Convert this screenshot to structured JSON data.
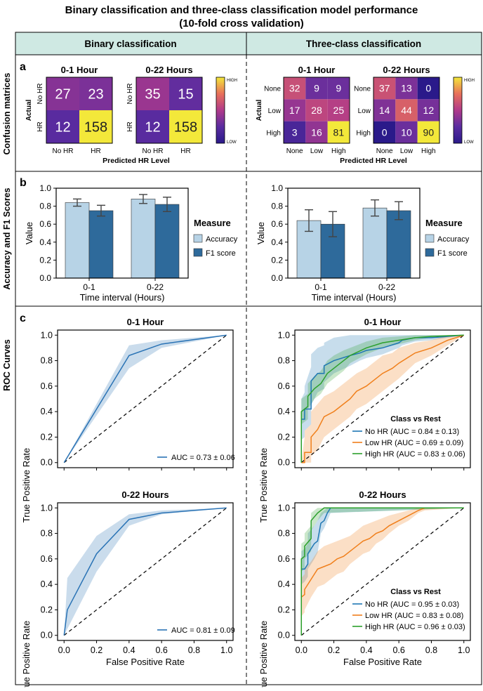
{
  "figure": {
    "title_line1": "Binary classification and three-class classification model performance",
    "title_line2": "(10-fold cross validation)",
    "col_binary": "Binary classification",
    "col_three": "Three-class classification",
    "row_cm": "Confusion matrices",
    "row_acc": "Accuracy and F1 Scores",
    "row_roc": "ROC Curves",
    "panel_a": "a",
    "panel_b": "b",
    "panel_c": "c",
    "colorbar_high": "HIGH",
    "colorbar_low": "LOW",
    "header_color": "#cfe9e3"
  },
  "chart_data": {
    "confusion_matrices": [
      {
        "id": "bin01",
        "title": "0-1 Hour",
        "rows": [
          "No HR",
          "HR"
        ],
        "cols": [
          "No HR",
          "HR"
        ],
        "values": [
          [
            27,
            23
          ],
          [
            12,
            158
          ]
        ],
        "ylabel": "Actual",
        "xlabel": "Predicted HR Level"
      },
      {
        "id": "bin022",
        "title": "0-22 Hours",
        "rows": [
          "No HR",
          "HR"
        ],
        "cols": [
          "No HR",
          "HR"
        ],
        "values": [
          [
            35,
            15
          ],
          [
            12,
            158
          ]
        ]
      },
      {
        "id": "tri01",
        "title": "0-1 Hour",
        "rows": [
          "None",
          "Low",
          "High"
        ],
        "cols": [
          "None",
          "Low",
          "High"
        ],
        "values": [
          [
            32,
            9,
            9
          ],
          [
            17,
            28,
            25
          ],
          [
            3,
            16,
            81
          ]
        ],
        "ylabel": "Actual",
        "xlabel": "Predicted HR Level"
      },
      {
        "id": "tri022",
        "title": "0-22 Hours",
        "rows": [
          "None",
          "Low",
          "High"
        ],
        "cols": [
          "None",
          "Low",
          "High"
        ],
        "values": [
          [
            37,
            13,
            0
          ],
          [
            14,
            44,
            12
          ],
          [
            0,
            10,
            90
          ]
        ]
      }
    ],
    "bars": [
      {
        "id": "bin",
        "type": "bar",
        "categories": [
          "0-1",
          "0-22"
        ],
        "xlabel": "Time interval (Hours)",
        "ylabel": "Value",
        "ylim": [
          0,
          1.0
        ],
        "yticks": [
          "0.0",
          "0.2",
          "0.4",
          "0.6",
          "0.8",
          "1.0"
        ],
        "legend_title": "Measure",
        "series": [
          {
            "name": "Accuracy",
            "color": "#b7d3e6",
            "values": [
              0.84,
              0.88
            ],
            "err": [
              0.04,
              0.05
            ]
          },
          {
            "name": "F1 score",
            "color": "#2e6a9b",
            "values": [
              0.75,
              0.82
            ],
            "err": [
              0.06,
              0.08
            ]
          }
        ]
      },
      {
        "id": "tri",
        "type": "bar",
        "categories": [
          "0-1",
          "0-22"
        ],
        "xlabel": "Time interval (Hours)",
        "ylabel": "Value",
        "ylim": [
          0,
          1.0
        ],
        "yticks": [
          "0.0",
          "0.2",
          "0.4",
          "0.6",
          "0.8",
          "1.0"
        ],
        "legend_title": "Measure",
        "series": [
          {
            "name": "Accuracy",
            "color": "#b7d3e6",
            "values": [
              0.64,
              0.78
            ],
            "err": [
              0.12,
              0.09
            ]
          },
          {
            "name": "F1 score",
            "color": "#2e6a9b",
            "values": [
              0.6,
              0.75
            ],
            "err": [
              0.14,
              0.1
            ]
          }
        ]
      }
    ],
    "roc": [
      {
        "id": "roc_bin01",
        "type": "line",
        "title": "0-1 Hour",
        "ylabel": "True Positive Rate",
        "xlabel": "",
        "ticks": [
          "0.0",
          "0.2",
          "0.4",
          "0.6",
          "0.8",
          "1.0"
        ],
        "series": [
          {
            "label": "AUC = 0.73 ± 0.06",
            "color": "#2a73b5",
            "x": [
              0,
              0.4,
              0.6,
              1.0
            ],
            "y": [
              0,
              0.84,
              0.93,
              1.0
            ],
            "lo": [
              0,
              0.74,
              0.9,
              1.0
            ],
            "hi": [
              0,
              0.92,
              0.96,
              1.0
            ]
          }
        ]
      },
      {
        "id": "roc_bin022",
        "type": "line",
        "title": "0-22 Hours",
        "ylabel": "True Positive Rate",
        "xlabel": "False Positive Rate",
        "ticks": [
          "0.0",
          "0.2",
          "0.4",
          "0.6",
          "0.8",
          "1.0"
        ],
        "series": [
          {
            "label": "AUC = 0.81 ± 0.09",
            "color": "#2a73b5",
            "x": [
              0,
              0.02,
              0.2,
              0.4,
              0.6,
              1.0
            ],
            "y": [
              0,
              0.2,
              0.64,
              0.91,
              0.96,
              1.0
            ],
            "lo": [
              0,
              0.05,
              0.5,
              0.86,
              0.95,
              1.0
            ],
            "hi": [
              0,
              0.45,
              0.78,
              0.95,
              0.98,
              1.0
            ]
          }
        ]
      },
      {
        "id": "roc_tri01",
        "type": "line",
        "title": "0-1 Hour",
        "ylabel": "True Positive Rate",
        "xlabel": "",
        "ticks": [
          "0.0",
          "0.2",
          "0.4",
          "0.6",
          "0.8",
          "1.0"
        ],
        "legend_title": "Class vs Rest",
        "series": [
          {
            "label": "No HR (AUC = 0.84 ± 0.13)",
            "color": "#1f77b4",
            "x": [
              0,
              0,
              0.02,
              0.02,
              0.06,
              0.06,
              0.1,
              0.14,
              0.14,
              0.2,
              0.3,
              0.36,
              0.4,
              0.5,
              0.6,
              0.62,
              0.7,
              0.8,
              1.0
            ],
            "y": [
              0,
              0.34,
              0.34,
              0.42,
              0.42,
              0.64,
              0.7,
              0.7,
              0.76,
              0.8,
              0.84,
              0.86,
              0.88,
              0.9,
              0.94,
              0.96,
              0.98,
              0.98,
              1.0
            ],
            "lo": [
              0,
              0.18,
              0.2,
              0.25,
              0.3,
              0.45,
              0.55,
              0.58,
              0.63,
              0.7,
              0.76,
              0.8,
              0.82,
              0.85,
              0.9,
              0.92,
              0.95,
              0.96,
              1.0
            ],
            "hi": [
              0,
              0.5,
              0.55,
              0.6,
              0.75,
              0.85,
              0.9,
              0.92,
              0.94,
              0.98,
              1.0,
              1.0,
              1.0,
              1.0,
              1.0,
              1.0,
              1.0,
              1.0,
              1.0
            ]
          },
          {
            "label": "Low HR (AUC = 0.69 ± 0.09)",
            "color": "#f07f1b",
            "x": [
              0,
              0.02,
              0.02,
              0.06,
              0.06,
              0.1,
              0.14,
              0.2,
              0.24,
              0.3,
              0.34,
              0.4,
              0.44,
              0.5,
              0.56,
              0.6,
              0.7,
              0.8,
              0.9,
              1.0
            ],
            "y": [
              0,
              0.0,
              0.08,
              0.08,
              0.2,
              0.26,
              0.36,
              0.4,
              0.44,
              0.5,
              0.56,
              0.6,
              0.64,
              0.7,
              0.74,
              0.78,
              0.86,
              0.9,
              0.96,
              1.0
            ],
            "lo": [
              0,
              0,
              0,
              0,
              0.05,
              0.1,
              0.2,
              0.26,
              0.3,
              0.36,
              0.42,
              0.46,
              0.5,
              0.56,
              0.62,
              0.66,
              0.78,
              0.84,
              0.92,
              1.0
            ],
            "hi": [
              0,
              0.2,
              0.25,
              0.3,
              0.4,
              0.46,
              0.52,
              0.56,
              0.6,
              0.66,
              0.7,
              0.74,
              0.78,
              0.84,
              0.86,
              0.9,
              0.94,
              0.96,
              1.0,
              1.0
            ]
          },
          {
            "label": "High HR (AUC = 0.83 ± 0.06)",
            "color": "#2ca02c",
            "x": [
              0,
              0,
              0.04,
              0.04,
              0.08,
              0.12,
              0.16,
              0.2,
              0.26,
              0.3,
              0.4,
              0.5,
              0.6,
              0.7,
              0.8,
              1.0
            ],
            "y": [
              0,
              0.4,
              0.44,
              0.52,
              0.58,
              0.62,
              0.7,
              0.74,
              0.8,
              0.84,
              0.9,
              0.94,
              0.96,
              0.98,
              0.99,
              1.0
            ],
            "lo": [
              0,
              0.3,
              0.34,
              0.42,
              0.5,
              0.54,
              0.62,
              0.66,
              0.72,
              0.78,
              0.85,
              0.9,
              0.93,
              0.96,
              0.98,
              1.0
            ],
            "hi": [
              0,
              0.5,
              0.54,
              0.62,
              0.68,
              0.72,
              0.8,
              0.84,
              0.88,
              0.9,
              0.95,
              0.98,
              0.99,
              1.0,
              1.0,
              1.0
            ]
          }
        ]
      },
      {
        "id": "roc_tri022",
        "type": "line",
        "title": "0-22 Hours",
        "ylabel": "True Positive Rate",
        "xlabel": "False Positive Rate",
        "ticks": [
          "0.0",
          "0.2",
          "0.4",
          "0.6",
          "0.8",
          "1.0"
        ],
        "legend_title": "Class vs Rest",
        "series": [
          {
            "label": "No HR (AUC = 0.95 ± 0.03)",
            "color": "#1f77b4",
            "x": [
              0,
              0,
              0.02,
              0.04,
              0.04,
              0.08,
              0.1,
              0.12,
              0.14,
              0.16,
              0.18,
              1.0
            ],
            "y": [
              0,
              0.52,
              0.52,
              0.56,
              0.64,
              0.72,
              0.74,
              0.88,
              0.9,
              0.96,
              1.0,
              1.0
            ],
            "lo": [
              0,
              0.4,
              0.42,
              0.46,
              0.52,
              0.6,
              0.65,
              0.8,
              0.84,
              0.9,
              0.96,
              1.0
            ],
            "hi": [
              0,
              0.66,
              0.68,
              0.72,
              0.8,
              0.86,
              0.9,
              0.96,
              0.98,
              1.0,
              1.0,
              1.0
            ]
          },
          {
            "label": "Low HR (AUC = 0.83 ± 0.08)",
            "color": "#f07f1b",
            "x": [
              0,
              0,
              0.02,
              0.02,
              0.06,
              0.08,
              0.1,
              0.14,
              0.18,
              0.22,
              0.26,
              0.3,
              0.34,
              0.38,
              0.42,
              0.46,
              0.5,
              0.54,
              0.6,
              0.66,
              0.72,
              0.76,
              1.0
            ],
            "y": [
              0,
              0.3,
              0.32,
              0.36,
              0.44,
              0.48,
              0.52,
              0.54,
              0.56,
              0.6,
              0.62,
              0.66,
              0.7,
              0.74,
              0.76,
              0.8,
              0.82,
              0.86,
              0.9,
              0.94,
              0.98,
              1.0,
              1.0
            ],
            "lo": [
              0,
              0.15,
              0.18,
              0.2,
              0.3,
              0.34,
              0.38,
              0.4,
              0.44,
              0.48,
              0.5,
              0.56,
              0.6,
              0.64,
              0.66,
              0.72,
              0.75,
              0.8,
              0.86,
              0.9,
              0.96,
              0.98,
              1.0
            ],
            "hi": [
              0,
              0.45,
              0.48,
              0.52,
              0.58,
              0.62,
              0.66,
              0.7,
              0.72,
              0.74,
              0.76,
              0.78,
              0.82,
              0.86,
              0.88,
              0.9,
              0.92,
              0.94,
              0.96,
              0.98,
              1.0,
              1.0,
              1.0
            ]
          },
          {
            "label": "High HR (AUC = 0.96 ± 0.03)",
            "color": "#2ca02c",
            "x": [
              0,
              0,
              0.02,
              0.02,
              0.06,
              0.06,
              0.1,
              0.14,
              1.0
            ],
            "y": [
              0,
              0.6,
              0.62,
              0.7,
              0.76,
              0.9,
              0.96,
              1.0,
              1.0
            ],
            "lo": [
              0,
              0.5,
              0.52,
              0.6,
              0.66,
              0.82,
              0.9,
              0.96,
              1.0
            ],
            "hi": [
              0,
              0.72,
              0.74,
              0.8,
              0.86,
              0.96,
              1.0,
              1.0,
              1.0
            ]
          }
        ]
      }
    ]
  }
}
